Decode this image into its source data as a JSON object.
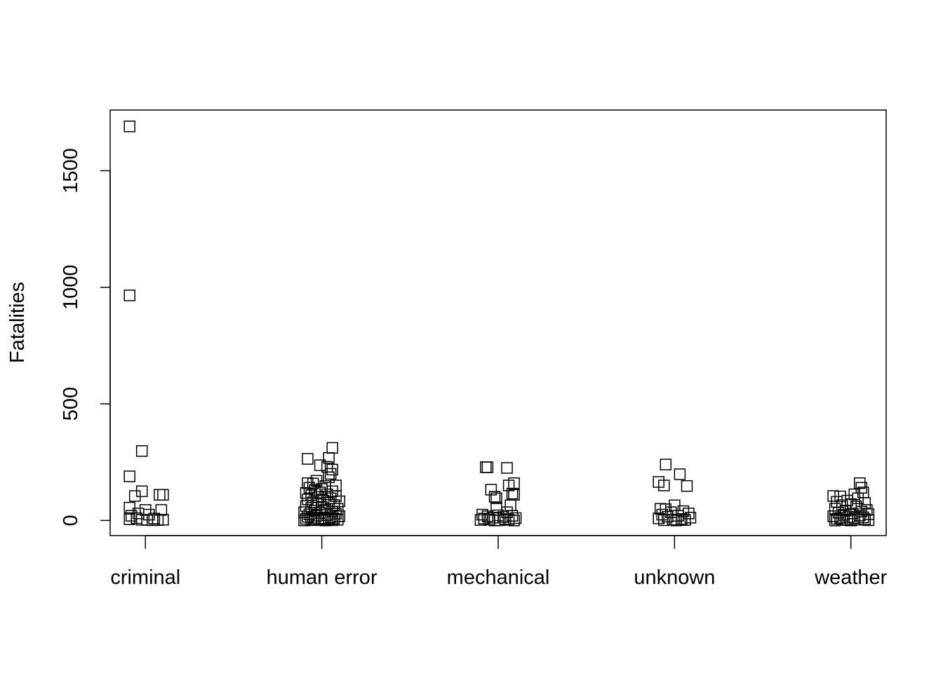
{
  "chart_data": {
    "type": "scatter",
    "title": "",
    "xlabel": "",
    "ylabel": "Fatalities",
    "ylim": [
      -65,
      1760
    ],
    "y_ticks": [
      0,
      500,
      1000,
      1500
    ],
    "y_tick_labels": [
      "0",
      "500",
      "1000",
      "1500"
    ],
    "categories": [
      "criminal",
      "human error",
      "mechanical",
      "unknown",
      "weather"
    ],
    "marker": "open-square",
    "grid": false,
    "legend": "none",
    "points": [
      {
        "category": "criminal",
        "jitter": -0.09,
        "y": 1690
      },
      {
        "category": "criminal",
        "jitter": -0.09,
        "y": 965
      },
      {
        "category": "criminal",
        "jitter": -0.02,
        "y": 298
      },
      {
        "category": "criminal",
        "jitter": -0.09,
        "y": 189
      },
      {
        "category": "criminal",
        "jitter": -0.02,
        "y": 125
      },
      {
        "category": "criminal",
        "jitter": 0.08,
        "y": 110
      },
      {
        "category": "criminal",
        "jitter": 0.1,
        "y": 110
      },
      {
        "category": "criminal",
        "jitter": -0.06,
        "y": 105
      },
      {
        "category": "criminal",
        "jitter": -0.09,
        "y": 55
      },
      {
        "category": "criminal",
        "jitter": 0.09,
        "y": 45
      },
      {
        "category": "criminal",
        "jitter": 0.0,
        "y": 45
      },
      {
        "category": "criminal",
        "jitter": -0.04,
        "y": 30
      },
      {
        "category": "criminal",
        "jitter": 0.02,
        "y": 25
      },
      {
        "category": "criminal",
        "jitter": -0.08,
        "y": 20
      },
      {
        "category": "criminal",
        "jitter": -0.05,
        "y": 10
      },
      {
        "category": "criminal",
        "jitter": -0.09,
        "y": 5
      },
      {
        "category": "criminal",
        "jitter": -0.02,
        "y": 3
      },
      {
        "category": "criminal",
        "jitter": 0.01,
        "y": 2
      },
      {
        "category": "criminal",
        "jitter": 0.04,
        "y": 1
      },
      {
        "category": "criminal",
        "jitter": 0.07,
        "y": 2
      },
      {
        "category": "criminal",
        "jitter": 0.1,
        "y": 3
      },
      {
        "category": "criminal",
        "jitter": 0.05,
        "y": 8
      },
      {
        "category": "human error",
        "jitter": 0.06,
        "y": 311
      },
      {
        "category": "human error",
        "jitter": 0.04,
        "y": 268
      },
      {
        "category": "human error",
        "jitter": -0.08,
        "y": 264
      },
      {
        "category": "human error",
        "jitter": -0.01,
        "y": 237
      },
      {
        "category": "human error",
        "jitter": 0.03,
        "y": 230
      },
      {
        "category": "human error",
        "jitter": 0.06,
        "y": 218
      },
      {
        "category": "human error",
        "jitter": 0.05,
        "y": 200
      },
      {
        "category": "human error",
        "jitter": 0.04,
        "y": 185
      },
      {
        "category": "human error",
        "jitter": -0.03,
        "y": 170
      },
      {
        "category": "human error",
        "jitter": -0.08,
        "y": 160
      },
      {
        "category": "human error",
        "jitter": -0.05,
        "y": 158
      },
      {
        "category": "human error",
        "jitter": 0.08,
        "y": 150
      },
      {
        "category": "human error",
        "jitter": 0.02,
        "y": 148
      },
      {
        "category": "human error",
        "jitter": -0.07,
        "y": 140
      },
      {
        "category": "human error",
        "jitter": 0.0,
        "y": 135
      },
      {
        "category": "human error",
        "jitter": -0.04,
        "y": 130
      },
      {
        "category": "human error",
        "jitter": 0.06,
        "y": 125
      },
      {
        "category": "human error",
        "jitter": -0.01,
        "y": 120
      },
      {
        "category": "human error",
        "jitter": -0.09,
        "y": 118
      },
      {
        "category": "human error",
        "jitter": 0.03,
        "y": 112
      },
      {
        "category": "human error",
        "jitter": -0.06,
        "y": 108
      },
      {
        "category": "human error",
        "jitter": 0.08,
        "y": 104
      },
      {
        "category": "human error",
        "jitter": -0.02,
        "y": 100
      },
      {
        "category": "human error",
        "jitter": 0.05,
        "y": 95
      },
      {
        "category": "human error",
        "jitter": -0.08,
        "y": 90
      },
      {
        "category": "human error",
        "jitter": 0.01,
        "y": 85
      },
      {
        "category": "human error",
        "jitter": 0.1,
        "y": 82
      },
      {
        "category": "human error",
        "jitter": -0.05,
        "y": 78
      },
      {
        "category": "human error",
        "jitter": 0.04,
        "y": 75
      },
      {
        "category": "human error",
        "jitter": -0.03,
        "y": 70
      },
      {
        "category": "human error",
        "jitter": 0.07,
        "y": 66
      },
      {
        "category": "human error",
        "jitter": -0.09,
        "y": 62
      },
      {
        "category": "human error",
        "jitter": 0.0,
        "y": 58
      },
      {
        "category": "human error",
        "jitter": -0.06,
        "y": 54
      },
      {
        "category": "human error",
        "jitter": 0.09,
        "y": 50
      },
      {
        "category": "human error",
        "jitter": 0.02,
        "y": 46
      },
      {
        "category": "human error",
        "jitter": -0.04,
        "y": 42
      },
      {
        "category": "human error",
        "jitter": 0.06,
        "y": 38
      },
      {
        "category": "human error",
        "jitter": -0.1,
        "y": 35
      },
      {
        "category": "human error",
        "jitter": -0.01,
        "y": 32
      },
      {
        "category": "human error",
        "jitter": 0.08,
        "y": 29
      },
      {
        "category": "human error",
        "jitter": -0.07,
        "y": 26
      },
      {
        "category": "human error",
        "jitter": 0.03,
        "y": 23
      },
      {
        "category": "human error",
        "jitter": -0.03,
        "y": 20
      },
      {
        "category": "human error",
        "jitter": 0.1,
        "y": 18
      },
      {
        "category": "human error",
        "jitter": -0.08,
        "y": 16
      },
      {
        "category": "human error",
        "jitter": 0.05,
        "y": 14
      },
      {
        "category": "human error",
        "jitter": -0.05,
        "y": 12
      },
      {
        "category": "human error",
        "jitter": 0.01,
        "y": 10
      },
      {
        "category": "human error",
        "jitter": 0.07,
        "y": 8
      },
      {
        "category": "human error",
        "jitter": -0.09,
        "y": 7
      },
      {
        "category": "human error",
        "jitter": -0.02,
        "y": 6
      },
      {
        "category": "human error",
        "jitter": 0.04,
        "y": 5
      },
      {
        "category": "human error",
        "jitter": -0.06,
        "y": 4
      },
      {
        "category": "human error",
        "jitter": 0.09,
        "y": 3
      },
      {
        "category": "human error",
        "jitter": 0.0,
        "y": 2
      },
      {
        "category": "human error",
        "jitter": -0.04,
        "y": 1
      },
      {
        "category": "human error",
        "jitter": 0.06,
        "y": 1
      },
      {
        "category": "human error",
        "jitter": -0.1,
        "y": 0
      },
      {
        "category": "human error",
        "jitter": 0.02,
        "y": 0
      },
      {
        "category": "mechanical",
        "jitter": -0.07,
        "y": 228
      },
      {
        "category": "mechanical",
        "jitter": -0.06,
        "y": 228
      },
      {
        "category": "mechanical",
        "jitter": 0.05,
        "y": 225
      },
      {
        "category": "mechanical",
        "jitter": 0.09,
        "y": 160
      },
      {
        "category": "mechanical",
        "jitter": 0.06,
        "y": 150
      },
      {
        "category": "mechanical",
        "jitter": -0.04,
        "y": 132
      },
      {
        "category": "mechanical",
        "jitter": 0.08,
        "y": 115
      },
      {
        "category": "mechanical",
        "jitter": 0.09,
        "y": 110
      },
      {
        "category": "mechanical",
        "jitter": -0.02,
        "y": 102
      },
      {
        "category": "mechanical",
        "jitter": -0.01,
        "y": 95
      },
      {
        "category": "mechanical",
        "jitter": 0.07,
        "y": 65
      },
      {
        "category": "mechanical",
        "jitter": -0.01,
        "y": 55
      },
      {
        "category": "mechanical",
        "jitter": 0.05,
        "y": 35
      },
      {
        "category": "mechanical",
        "jitter": -0.09,
        "y": 25
      },
      {
        "category": "mechanical",
        "jitter": 0.0,
        "y": 22
      },
      {
        "category": "mechanical",
        "jitter": 0.08,
        "y": 20
      },
      {
        "category": "mechanical",
        "jitter": -0.06,
        "y": 18
      },
      {
        "category": "mechanical",
        "jitter": 0.03,
        "y": 15
      },
      {
        "category": "mechanical",
        "jitter": -0.03,
        "y": 12
      },
      {
        "category": "mechanical",
        "jitter": 0.1,
        "y": 10
      },
      {
        "category": "mechanical",
        "jitter": -0.08,
        "y": 8
      },
      {
        "category": "mechanical",
        "jitter": 0.04,
        "y": 6
      },
      {
        "category": "mechanical",
        "jitter": -0.05,
        "y": 4
      },
      {
        "category": "mechanical",
        "jitter": 0.06,
        "y": 3
      },
      {
        "category": "mechanical",
        "jitter": -0.1,
        "y": 2
      },
      {
        "category": "mechanical",
        "jitter": 0.01,
        "y": 1
      },
      {
        "category": "mechanical",
        "jitter": -0.02,
        "y": 0
      },
      {
        "category": "mechanical",
        "jitter": 0.09,
        "y": 0
      },
      {
        "category": "unknown",
        "jitter": -0.05,
        "y": 240
      },
      {
        "category": "unknown",
        "jitter": 0.03,
        "y": 198
      },
      {
        "category": "unknown",
        "jitter": -0.09,
        "y": 165
      },
      {
        "category": "unknown",
        "jitter": -0.06,
        "y": 150
      },
      {
        "category": "unknown",
        "jitter": 0.07,
        "y": 148
      },
      {
        "category": "unknown",
        "jitter": 0.0,
        "y": 65
      },
      {
        "category": "unknown",
        "jitter": -0.08,
        "y": 50
      },
      {
        "category": "unknown",
        "jitter": -0.05,
        "y": 48
      },
      {
        "category": "unknown",
        "jitter": 0.05,
        "y": 40
      },
      {
        "category": "unknown",
        "jitter": -0.02,
        "y": 35
      },
      {
        "category": "unknown",
        "jitter": 0.08,
        "y": 30
      },
      {
        "category": "unknown",
        "jitter": -0.07,
        "y": 25
      },
      {
        "category": "unknown",
        "jitter": 0.02,
        "y": 20
      },
      {
        "category": "unknown",
        "jitter": -0.04,
        "y": 16
      },
      {
        "category": "unknown",
        "jitter": 0.09,
        "y": 12
      },
      {
        "category": "unknown",
        "jitter": -0.09,
        "y": 9
      },
      {
        "category": "unknown",
        "jitter": 0.04,
        "y": 6
      },
      {
        "category": "unknown",
        "jitter": -0.01,
        "y": 4
      },
      {
        "category": "unknown",
        "jitter": 0.06,
        "y": 2
      },
      {
        "category": "unknown",
        "jitter": -0.06,
        "y": 1
      },
      {
        "category": "unknown",
        "jitter": 0.01,
        "y": 0
      },
      {
        "category": "weather",
        "jitter": 0.05,
        "y": 160
      },
      {
        "category": "weather",
        "jitter": 0.06,
        "y": 140
      },
      {
        "category": "weather",
        "jitter": 0.07,
        "y": 120
      },
      {
        "category": "weather",
        "jitter": 0.02,
        "y": 112
      },
      {
        "category": "weather",
        "jitter": -0.1,
        "y": 105
      },
      {
        "category": "weather",
        "jitter": -0.06,
        "y": 103
      },
      {
        "category": "weather",
        "jitter": 0.04,
        "y": 95
      },
      {
        "category": "weather",
        "jitter": -0.02,
        "y": 85
      },
      {
        "category": "weather",
        "jitter": -0.08,
        "y": 80
      },
      {
        "category": "weather",
        "jitter": 0.08,
        "y": 75
      },
      {
        "category": "weather",
        "jitter": 0.0,
        "y": 70
      },
      {
        "category": "weather",
        "jitter": -0.05,
        "y": 65
      },
      {
        "category": "weather",
        "jitter": 0.03,
        "y": 60
      },
      {
        "category": "weather",
        "jitter": -0.09,
        "y": 50
      },
      {
        "category": "weather",
        "jitter": 0.09,
        "y": 45
      },
      {
        "category": "weather",
        "jitter": -0.03,
        "y": 42
      },
      {
        "category": "weather",
        "jitter": 0.06,
        "y": 38
      },
      {
        "category": "weather",
        "jitter": -0.07,
        "y": 33
      },
      {
        "category": "weather",
        "jitter": 0.01,
        "y": 30
      },
      {
        "category": "weather",
        "jitter": 0.1,
        "y": 27
      },
      {
        "category": "weather",
        "jitter": -0.04,
        "y": 24
      },
      {
        "category": "weather",
        "jitter": 0.05,
        "y": 21
      },
      {
        "category": "weather",
        "jitter": -0.1,
        "y": 18
      },
      {
        "category": "weather",
        "jitter": -0.01,
        "y": 15
      },
      {
        "category": "weather",
        "jitter": 0.07,
        "y": 13
      },
      {
        "category": "weather",
        "jitter": -0.06,
        "y": 11
      },
      {
        "category": "weather",
        "jitter": 0.02,
        "y": 9
      },
      {
        "category": "weather",
        "jitter": -0.08,
        "y": 7
      },
      {
        "category": "weather",
        "jitter": 0.08,
        "y": 5
      },
      {
        "category": "weather",
        "jitter": -0.02,
        "y": 4
      },
      {
        "category": "weather",
        "jitter": 0.04,
        "y": 3
      },
      {
        "category": "weather",
        "jitter": -0.05,
        "y": 2
      },
      {
        "category": "weather",
        "jitter": 0.1,
        "y": 1
      },
      {
        "category": "weather",
        "jitter": 0.0,
        "y": 0
      },
      {
        "category": "weather",
        "jitter": -0.09,
        "y": 0
      }
    ]
  }
}
